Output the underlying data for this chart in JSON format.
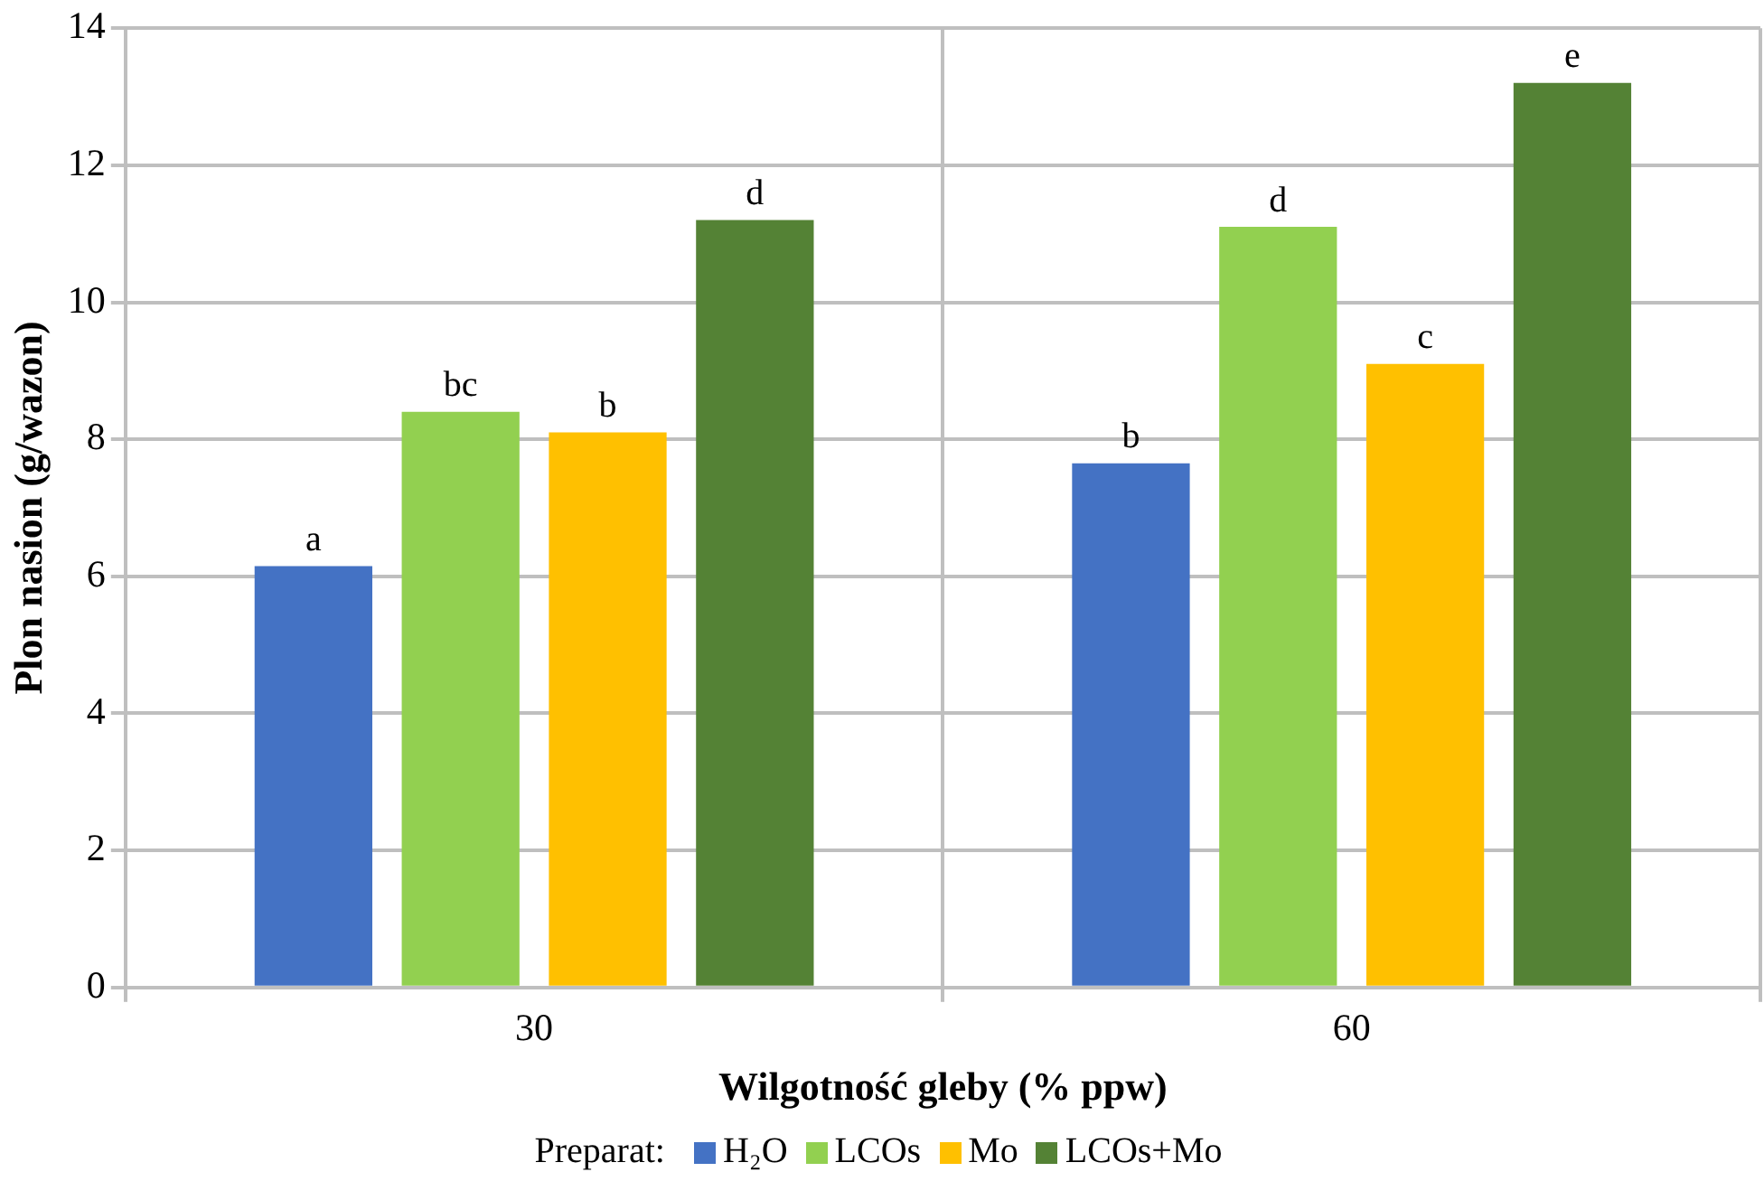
{
  "chart_data": {
    "type": "bar",
    "xlabel": "Wilgotność gleby (% ppw)",
    "ylabel": "Plon nasion (g/wazon)",
    "legend_title": "Preparat:",
    "categories": [
      "30",
      "60"
    ],
    "series": [
      {
        "name": "H₂O",
        "color": "#4472c4",
        "values": [
          6.15,
          7.65
        ],
        "value_labels": [
          "a",
          "b"
        ]
      },
      {
        "name": "LCOs",
        "color": "#92d050",
        "values": [
          8.4,
          11.1
        ],
        "value_labels": [
          "bc",
          "d"
        ]
      },
      {
        "name": "Mo",
        "color": "#ffc000",
        "values": [
          8.1,
          9.1
        ],
        "value_labels": [
          "b",
          "c"
        ]
      },
      {
        "name": "LCOs+Mo",
        "color": "#548235",
        "values": [
          11.2,
          13.2
        ],
        "value_labels": [
          "d",
          "e"
        ]
      }
    ],
    "ylim": [
      0,
      14
    ],
    "yticks": [
      0,
      2,
      4,
      6,
      8,
      10,
      12,
      14
    ],
    "grid": true,
    "legend": "bottom"
  }
}
